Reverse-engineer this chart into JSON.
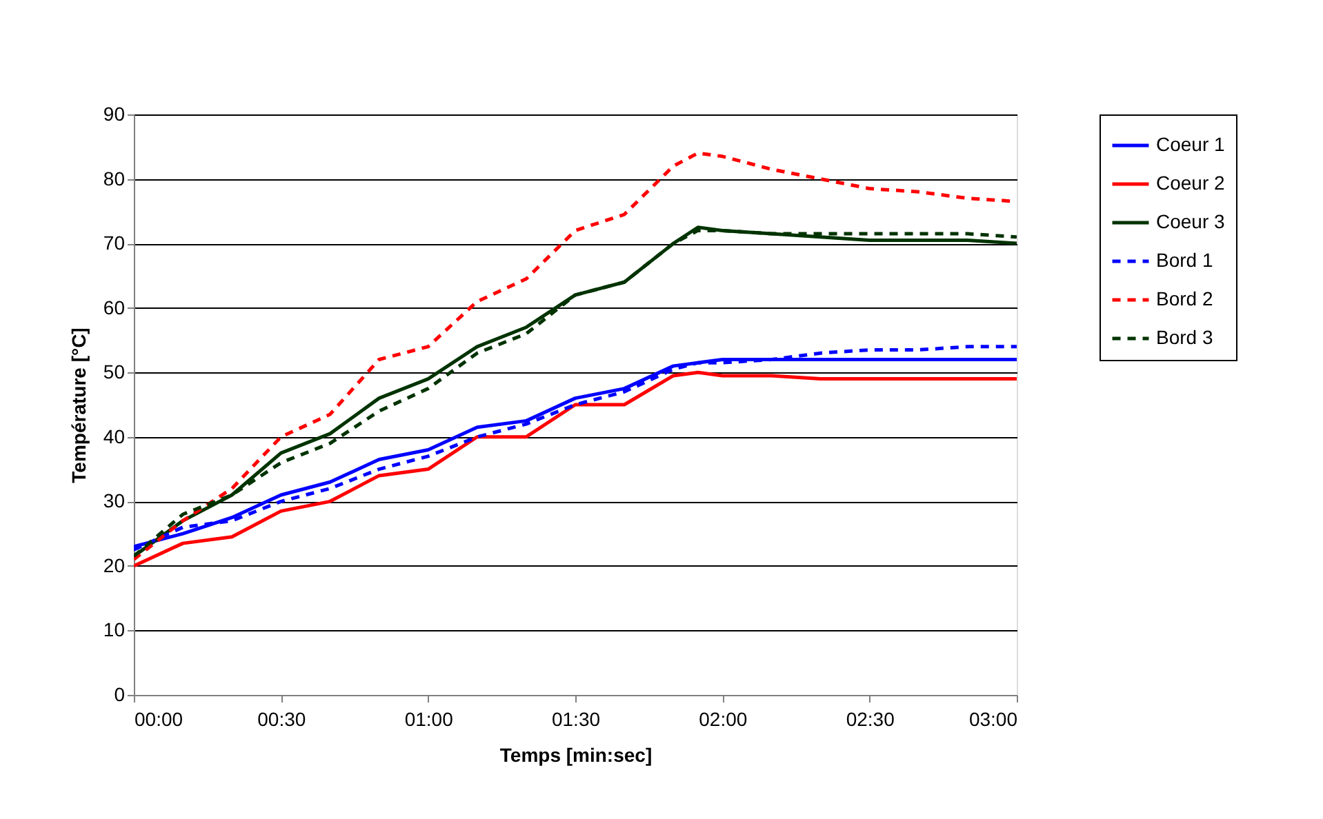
{
  "chart_data": {
    "type": "line",
    "xlabel": "Temps [min:sec]",
    "ylabel": "Température [°C]",
    "x": [
      0,
      10,
      20,
      30,
      40,
      50,
      60,
      70,
      80,
      90,
      100,
      110,
      115,
      120,
      130,
      140,
      150,
      160,
      170,
      180
    ],
    "xlim": [
      0,
      180
    ],
    "xticks": [
      {
        "value": 0,
        "label": "00:00"
      },
      {
        "value": 30,
        "label": "00:30"
      },
      {
        "value": 60,
        "label": "01:00"
      },
      {
        "value": 90,
        "label": "01:30"
      },
      {
        "value": 120,
        "label": "02:00"
      },
      {
        "value": 150,
        "label": "02:30"
      },
      {
        "value": 180,
        "label": "03:00"
      }
    ],
    "ylim": [
      0,
      90
    ],
    "yticks": [
      0,
      10,
      20,
      30,
      40,
      50,
      60,
      70,
      80,
      90
    ],
    "grid": "y",
    "legend": "right",
    "marker": "none",
    "series": [
      {
        "name": "Coeur 1",
        "color": "#0000ff",
        "line_style": "solid",
        "values": [
          23,
          25,
          27.5,
          31,
          33,
          36.5,
          38,
          41.5,
          42.5,
          46,
          47.5,
          51,
          51.5,
          52,
          52,
          52,
          52,
          52,
          52,
          52
        ]
      },
      {
        "name": "Coeur 2",
        "color": "#ff0000",
        "line_style": "solid",
        "values": [
          20,
          23.5,
          24.5,
          28.5,
          30,
          34,
          35,
          40,
          40,
          45,
          45,
          49.5,
          50,
          49.5,
          49.5,
          49,
          49,
          49,
          49,
          49
        ]
      },
      {
        "name": "Coeur 3",
        "color": "#003300",
        "line_style": "solid",
        "values": [
          21.5,
          27,
          31,
          37.5,
          40.5,
          46,
          49,
          54,
          57,
          62,
          64,
          70,
          72.5,
          72,
          71.5,
          71,
          70.5,
          70.5,
          70.5,
          70
        ]
      },
      {
        "name": "Bord 1",
        "color": "#0000ff",
        "line_style": "dashed",
        "values": [
          22.5,
          26,
          27,
          30,
          32,
          35,
          37,
          40,
          42,
          45,
          47,
          50.5,
          51.5,
          51.5,
          52,
          53,
          53.5,
          53.5,
          54,
          54
        ]
      },
      {
        "name": "Bord 2",
        "color": "#ff0000",
        "line_style": "dashed",
        "values": [
          21,
          27,
          32,
          40,
          43.5,
          52,
          54,
          61,
          64.5,
          72,
          74.5,
          82,
          84,
          83.5,
          81.5,
          80,
          78.5,
          78,
          77,
          76.5
        ]
      },
      {
        "name": "Bord 3",
        "color": "#003300",
        "line_style": "dashed",
        "values": [
          21.5,
          28,
          31,
          36,
          39,
          44,
          47.5,
          53,
          56,
          62,
          64,
          70,
          72,
          72,
          71.5,
          71.5,
          71.5,
          71.5,
          71.5,
          71
        ]
      }
    ]
  }
}
